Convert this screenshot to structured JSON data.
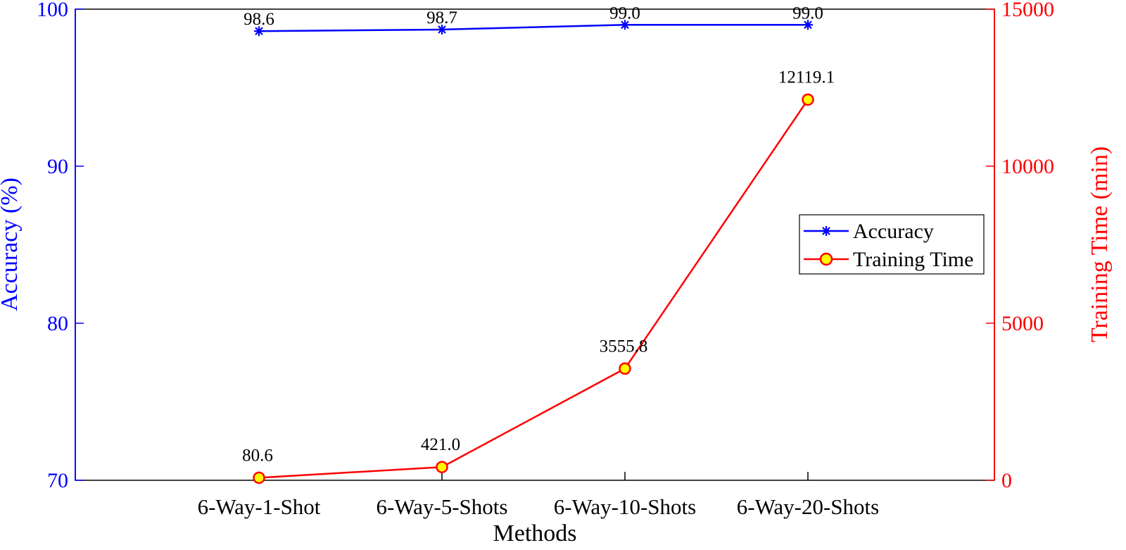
{
  "chart_data": {
    "type": "line",
    "title": "",
    "xlabel": "Methods",
    "ylabel_left": "Accuracy (%)",
    "ylabel_right": "Training Time (min)",
    "categories": [
      "6-Way-1-Shot",
      "6-Way-5-Shots",
      "6-Way-10-Shots",
      "6-Way-20-Shots"
    ],
    "y_left": {
      "lim": [
        70,
        100
      ],
      "ticks": [
        "70",
        "80",
        "90",
        "100"
      ],
      "color": "#0000ff"
    },
    "y_right": {
      "lim": [
        0,
        15000
      ],
      "ticks": [
        "0",
        "5000",
        "10000",
        "15000"
      ],
      "color": "#ff0000"
    },
    "series": [
      {
        "name": "Accuracy",
        "axis": "left",
        "color": "#0000ff",
        "marker": "asterisk",
        "values": [
          98.6,
          98.7,
          99.0,
          99.0
        ],
        "labels": [
          "98.6",
          "98.7",
          "99.0",
          "99.0"
        ]
      },
      {
        "name": "Training Time",
        "axis": "right",
        "color": "#ff0000",
        "marker_fill": "#ffff00",
        "marker": "circle",
        "values": [
          80.6,
          421.0,
          3555.8,
          12119.1
        ],
        "labels": [
          "80.6",
          "421.0",
          "3555.8",
          "12119.1"
        ]
      }
    ],
    "legend": {
      "position": "right-middle",
      "entries": [
        "Accuracy",
        "Training Time"
      ]
    },
    "grid": false
  }
}
